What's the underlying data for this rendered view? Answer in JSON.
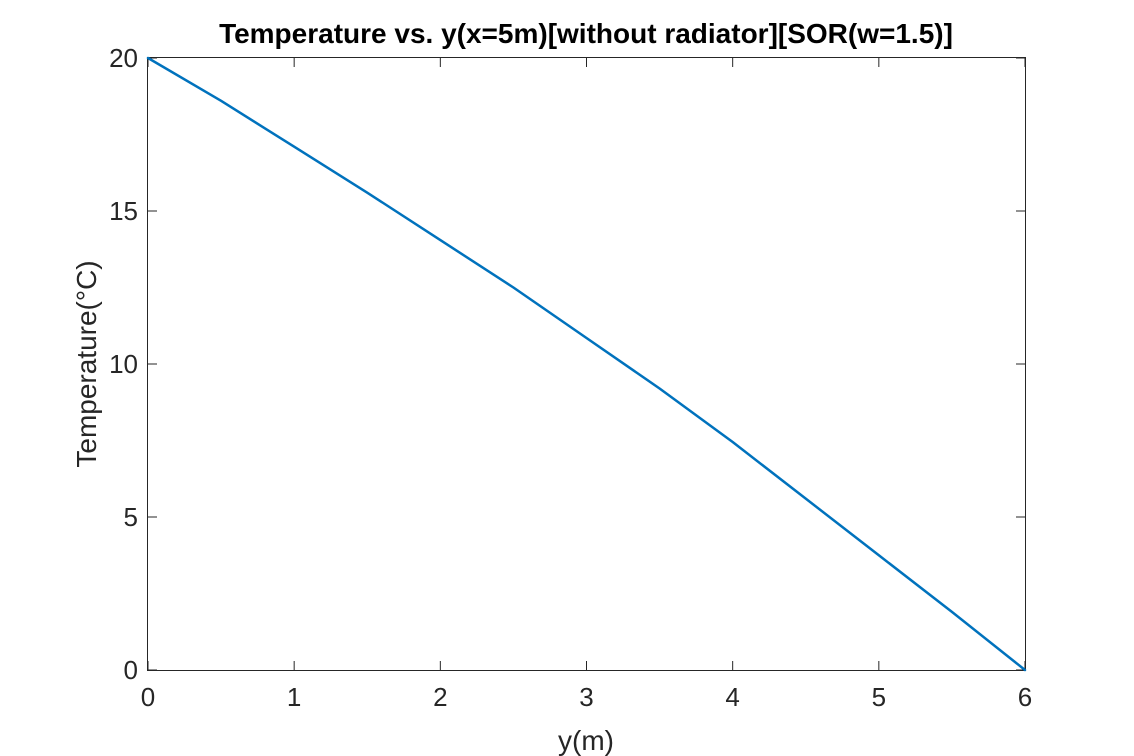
{
  "chart_data": {
    "type": "line",
    "title": "Temperature vs. y(x=5m)[without radiator][SOR(w=1.5)]",
    "xlabel": "y(m)",
    "ylabel": "Temperature(°C)",
    "xlim": [
      0,
      6
    ],
    "ylim": [
      0,
      20
    ],
    "xticks": [
      "0",
      "1",
      "2",
      "3",
      "4",
      "5",
      "6"
    ],
    "yticks": [
      "0",
      "5",
      "10",
      "15",
      "20"
    ],
    "grid": false,
    "legend": "none",
    "series": [
      {
        "color": "#0072BD",
        "x": [
          0,
          0.5,
          1,
          1.5,
          2,
          2.5,
          3,
          3.5,
          4,
          4.5,
          5,
          5.5,
          6
        ],
        "y": [
          20,
          18.6,
          17.1,
          15.6,
          14.05,
          12.5,
          10.85,
          9.2,
          7.45,
          5.6,
          3.75,
          1.9,
          0
        ]
      }
    ]
  }
}
